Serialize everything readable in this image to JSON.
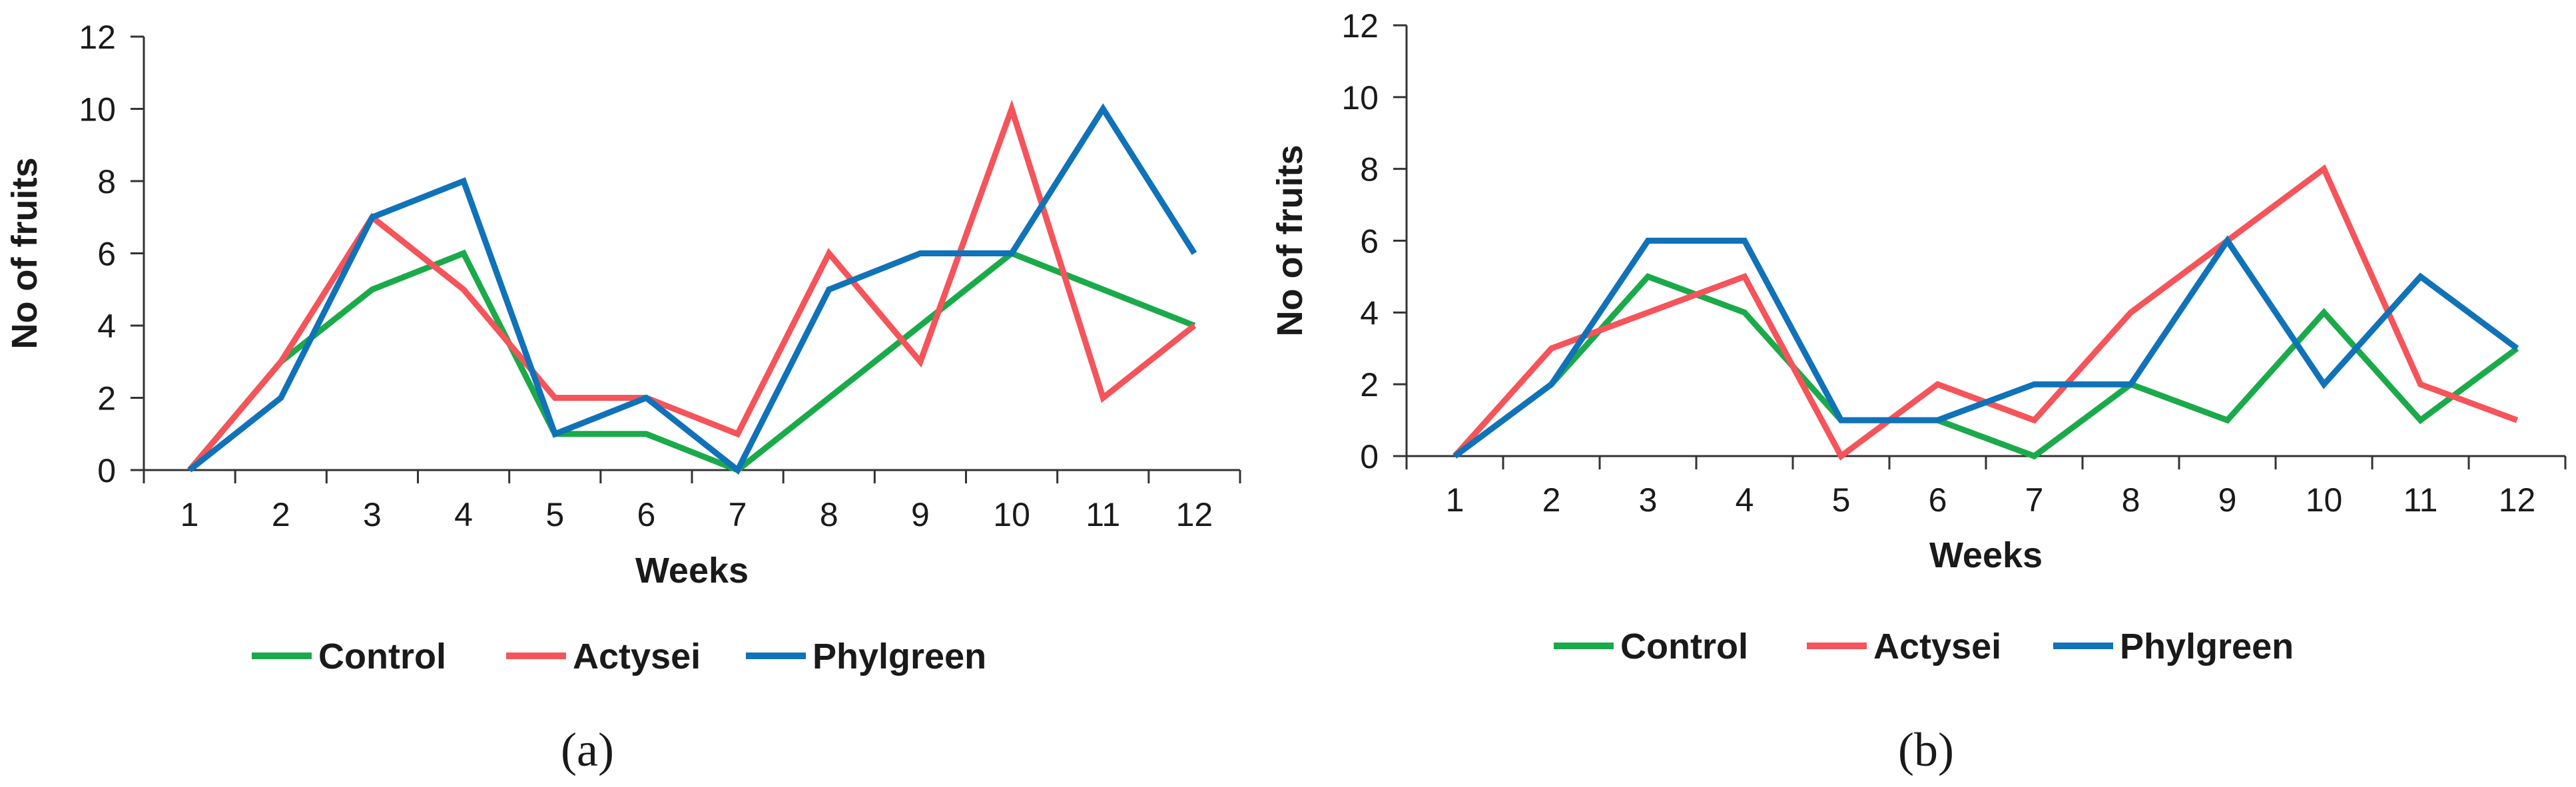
{
  "chart_data": [
    {
      "type": "line",
      "panel_label": "(a)",
      "xlabel": "Weeks",
      "ylabel": "No of fruits",
      "ylim": [
        0,
        12
      ],
      "yticks": [
        0,
        2,
        4,
        6,
        8,
        10,
        12
      ],
      "categories": [
        "1",
        "2",
        "3",
        "4",
        "5",
        "6",
        "7",
        "8",
        "9",
        "10",
        "11",
        "12"
      ],
      "series": [
        {
          "name": "Control",
          "color": "#1aaa4a",
          "values": [
            0,
            3,
            5,
            6,
            1,
            1,
            0,
            2,
            4,
            6,
            5,
            4
          ]
        },
        {
          "name": "Actysei",
          "color": "#f5545a",
          "values": [
            0,
            3,
            7,
            5,
            2,
            2,
            1,
            6,
            3,
            10,
            2,
            4
          ]
        },
        {
          "name": "Phylgreen",
          "color": "#1072b8",
          "values": [
            0,
            2,
            7,
            8,
            1,
            2,
            0,
            5,
            6,
            6,
            10,
            6
          ]
        }
      ]
    },
    {
      "type": "line",
      "panel_label": "(b)",
      "xlabel": "Weeks",
      "ylabel": "No of fruits",
      "ylim": [
        0,
        12
      ],
      "yticks": [
        0,
        2,
        4,
        6,
        8,
        10,
        12
      ],
      "categories": [
        "1",
        "2",
        "3",
        "4",
        "5",
        "6",
        "7",
        "8",
        "9",
        "10",
        "11",
        "12"
      ],
      "series": [
        {
          "name": "Control",
          "color": "#1aaa4a",
          "values": [
            0,
            2,
            5,
            4,
            1,
            1,
            0,
            2,
            1,
            4,
            1,
            3
          ]
        },
        {
          "name": "Actysei",
          "color": "#f5545a",
          "values": [
            0,
            3,
            4,
            5,
            0,
            2,
            1,
            4,
            6,
            8,
            2,
            1
          ]
        },
        {
          "name": "Phylgreen",
          "color": "#1072b8",
          "values": [
            0,
            2,
            6,
            6,
            1,
            1,
            2,
            2,
            6,
            2,
            5,
            3
          ]
        }
      ]
    }
  ]
}
